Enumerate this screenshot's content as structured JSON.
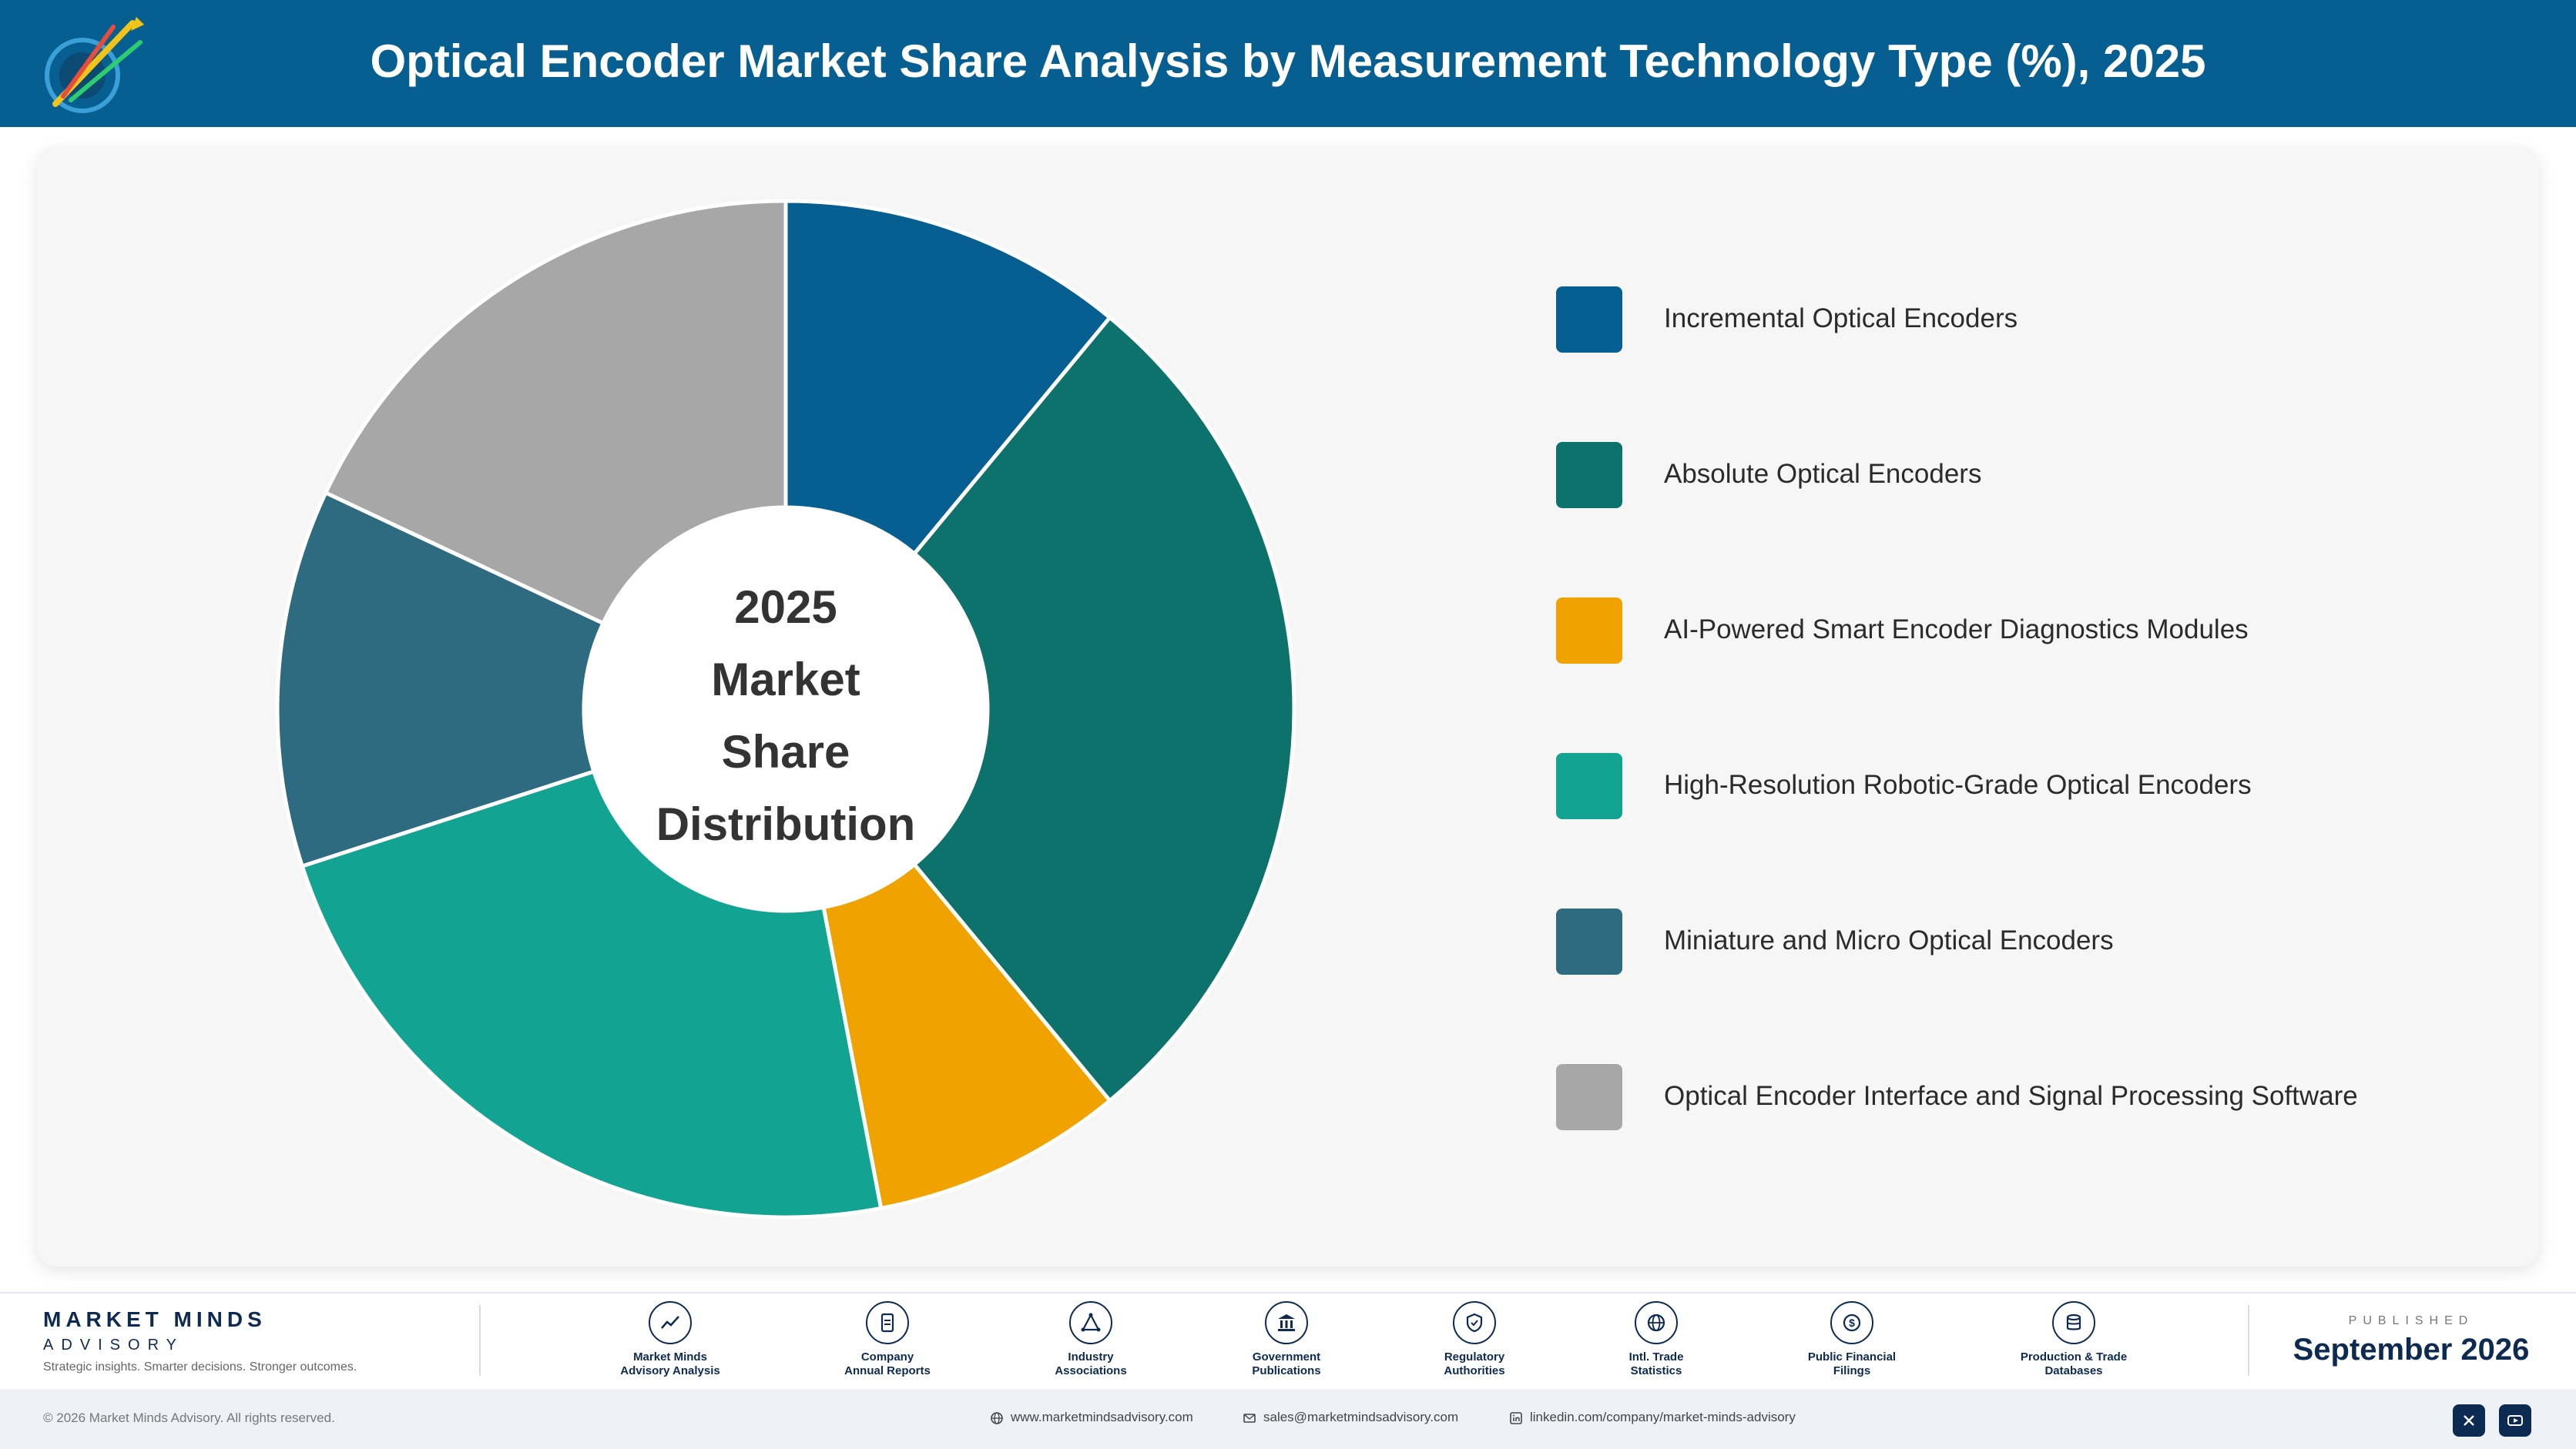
{
  "header": {
    "title": "Optical Encoder Market Share Analysis by Measurement Technology Type (%), 2025",
    "background": "#075f91"
  },
  "chart_data": {
    "type": "pie",
    "variant": "donut",
    "center_label": [
      "2025",
      "Market Share",
      "Distribution"
    ],
    "legend_position": "right",
    "categories": [
      "Incremental Optical Encoders",
      "Absolute Optical Encoders",
      "AI-Powered Smart Encoder Diagnostics Modules",
      "High-Resolution Robotic-Grade Optical Encoders",
      "Miniature and Micro Optical Encoders",
      "Optical Encoder Interface and Signal Processing Software"
    ],
    "values": [
      11,
      28,
      8,
      23,
      12,
      18
    ],
    "colors": [
      "#075f91",
      "#0c726b",
      "#f0a200",
      "#12a393",
      "#2e6b80",
      "#a7a7a7"
    ]
  },
  "footer": {
    "brand_name": "MARKET MINDS",
    "brand_sub": "ADVISORY",
    "brand_tagline": "Strategic insights. Smarter decisions. Stronger outcomes.",
    "sources": [
      {
        "label": "Market Minds\nAdvisory Analysis",
        "icon": "trend-icon"
      },
      {
        "label": "Company\nAnnual Reports",
        "icon": "document-icon"
      },
      {
        "label": "Industry\nAssociations",
        "icon": "network-icon"
      },
      {
        "label": "Government\nPublications",
        "icon": "government-icon"
      },
      {
        "label": "Regulatory\nAuthorities",
        "icon": "shield-icon"
      },
      {
        "label": "Intl. Trade\nStatistics",
        "icon": "globe-icon"
      },
      {
        "label": "Public Financial\nFilings",
        "icon": "dollar-icon"
      },
      {
        "label": "Production & Trade\nDatabases",
        "icon": "database-icon"
      }
    ],
    "published_label": "PUBLISHED",
    "published_date": "September 2026",
    "copyright": "© 2026 Market Minds Advisory. All rights reserved.",
    "website": "www.marketmindsadvisory.com",
    "email": "sales@marketmindsadvisory.com",
    "linkedin": "linkedin.com/company/market-minds-advisory"
  }
}
